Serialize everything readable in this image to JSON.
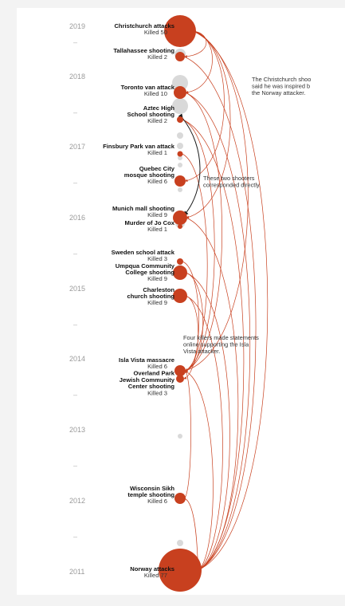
{
  "colors": {
    "accent": "#c8401f",
    "ghost": "#d9d9d9",
    "connector_dark": "#1a1a1a",
    "year_text": "#9a9a9a"
  },
  "years": [
    "2019",
    "2018",
    "2017",
    "2016",
    "2015",
    "2014",
    "2013",
    "2012",
    "2011"
  ],
  "year_separator": "–",
  "events": [
    {
      "name": [
        "Christchurch attacks"
      ],
      "killed": "Killed 50"
    },
    {
      "name": [
        "Tallahassee shooting"
      ],
      "killed": "Killed 2"
    },
    {
      "name": [
        "Toronto van attack"
      ],
      "killed": "Killed 10"
    },
    {
      "name": [
        "Aztec High",
        "School shooting"
      ],
      "killed": "Killed 2"
    },
    {
      "name": [
        "Finsbury Park van attack"
      ],
      "killed": "Killed 1"
    },
    {
      "name": [
        "Quebec City",
        "mosque shooting"
      ],
      "killed": "Killed 6"
    },
    {
      "name": [
        "Munich mall shooting"
      ],
      "killed": "Killed 9"
    },
    {
      "name": [
        "Murder of Jo Cox"
      ],
      "killed": "Killed 1"
    },
    {
      "name": [
        "Sweden school attack"
      ],
      "killed": "Killed 3"
    },
    {
      "name": [
        "Umpqua Community",
        "College shooting"
      ],
      "killed": "Killed 9"
    },
    {
      "name": [
        "Charleston",
        "church shooting"
      ],
      "killed": "Killed 9"
    },
    {
      "name": [
        "Isla Vista massacre"
      ],
      "killed": "Killed 6"
    },
    {
      "name": [
        "Overland Park",
        "Jewish Community",
        "Center shooting"
      ],
      "killed": "Killed 3"
    },
    {
      "name": [
        "Wisconsin Sikh",
        "temple shooting"
      ],
      "killed": "Killed 6"
    },
    {
      "name": [
        "Norway attacks"
      ],
      "killed": "Killed 77"
    }
  ],
  "annotations": [
    {
      "lines": [
        "The Christchurch shoo",
        "said he was inspired b",
        "the Norway attacker."
      ]
    },
    {
      "lines": [
        "These two shooters",
        "corresponded directly."
      ]
    },
    {
      "lines": [
        "Four killers made statements",
        "online supporting the Isla",
        "Vista attacker."
      ]
    }
  ]
}
